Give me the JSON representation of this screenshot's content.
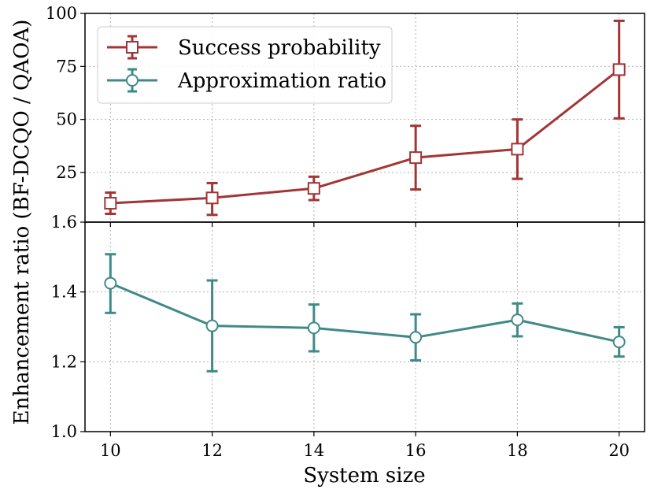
{
  "chart_data": {
    "type": "line",
    "ylabel": "Enhancement ratio (BF-DCQO / QAOA)",
    "xlabel": "System size",
    "x": [
      10,
      12,
      14,
      16,
      18,
      20
    ],
    "xlim": [
      9.5,
      20.5
    ],
    "xticks": [
      "10",
      "12",
      "14",
      "16",
      "18",
      "20"
    ],
    "legend": {
      "placement": "top-left",
      "entries": [
        "Success probability",
        "Approximation ratio"
      ]
    },
    "panels": [
      {
        "name": "success-probability",
        "ylim": [
          1.6,
          100
        ],
        "yticks": [
          {
            "value": 25,
            "label": "25"
          },
          {
            "value": 50,
            "label": "50"
          },
          {
            "value": 75,
            "label": "75"
          },
          {
            "value": 100,
            "label": "100"
          }
        ],
        "bottom_label": "1.6",
        "series": {
          "name": "Success probability",
          "color": "#a23535",
          "marker": "square",
          "values": [
            10.5,
            13.0,
            17.5,
            32.0,
            36.0,
            73.5
          ],
          "err_low": [
            5.0,
            8.0,
            5.5,
            15.0,
            14.0,
            23.0
          ],
          "err_high": [
            5.0,
            7.0,
            5.5,
            15.0,
            14.0,
            23.0
          ]
        }
      },
      {
        "name": "approximation-ratio",
        "ylim": [
          1.0,
          1.6
        ],
        "yticks": [
          {
            "value": 1.0,
            "label": "1.0"
          },
          {
            "value": 1.2,
            "label": "1.2"
          },
          {
            "value": 1.4,
            "label": "1.4"
          }
        ],
        "series": {
          "name": "Approximation ratio",
          "color": "#3f8a88",
          "marker": "circle",
          "values": [
            1.425,
            1.303,
            1.297,
            1.27,
            1.32,
            1.257
          ],
          "err_low": [
            0.085,
            0.13,
            0.067,
            0.066,
            0.047,
            0.042
          ],
          "err_high": [
            0.083,
            0.13,
            0.067,
            0.066,
            0.047,
            0.042
          ]
        }
      }
    ]
  }
}
